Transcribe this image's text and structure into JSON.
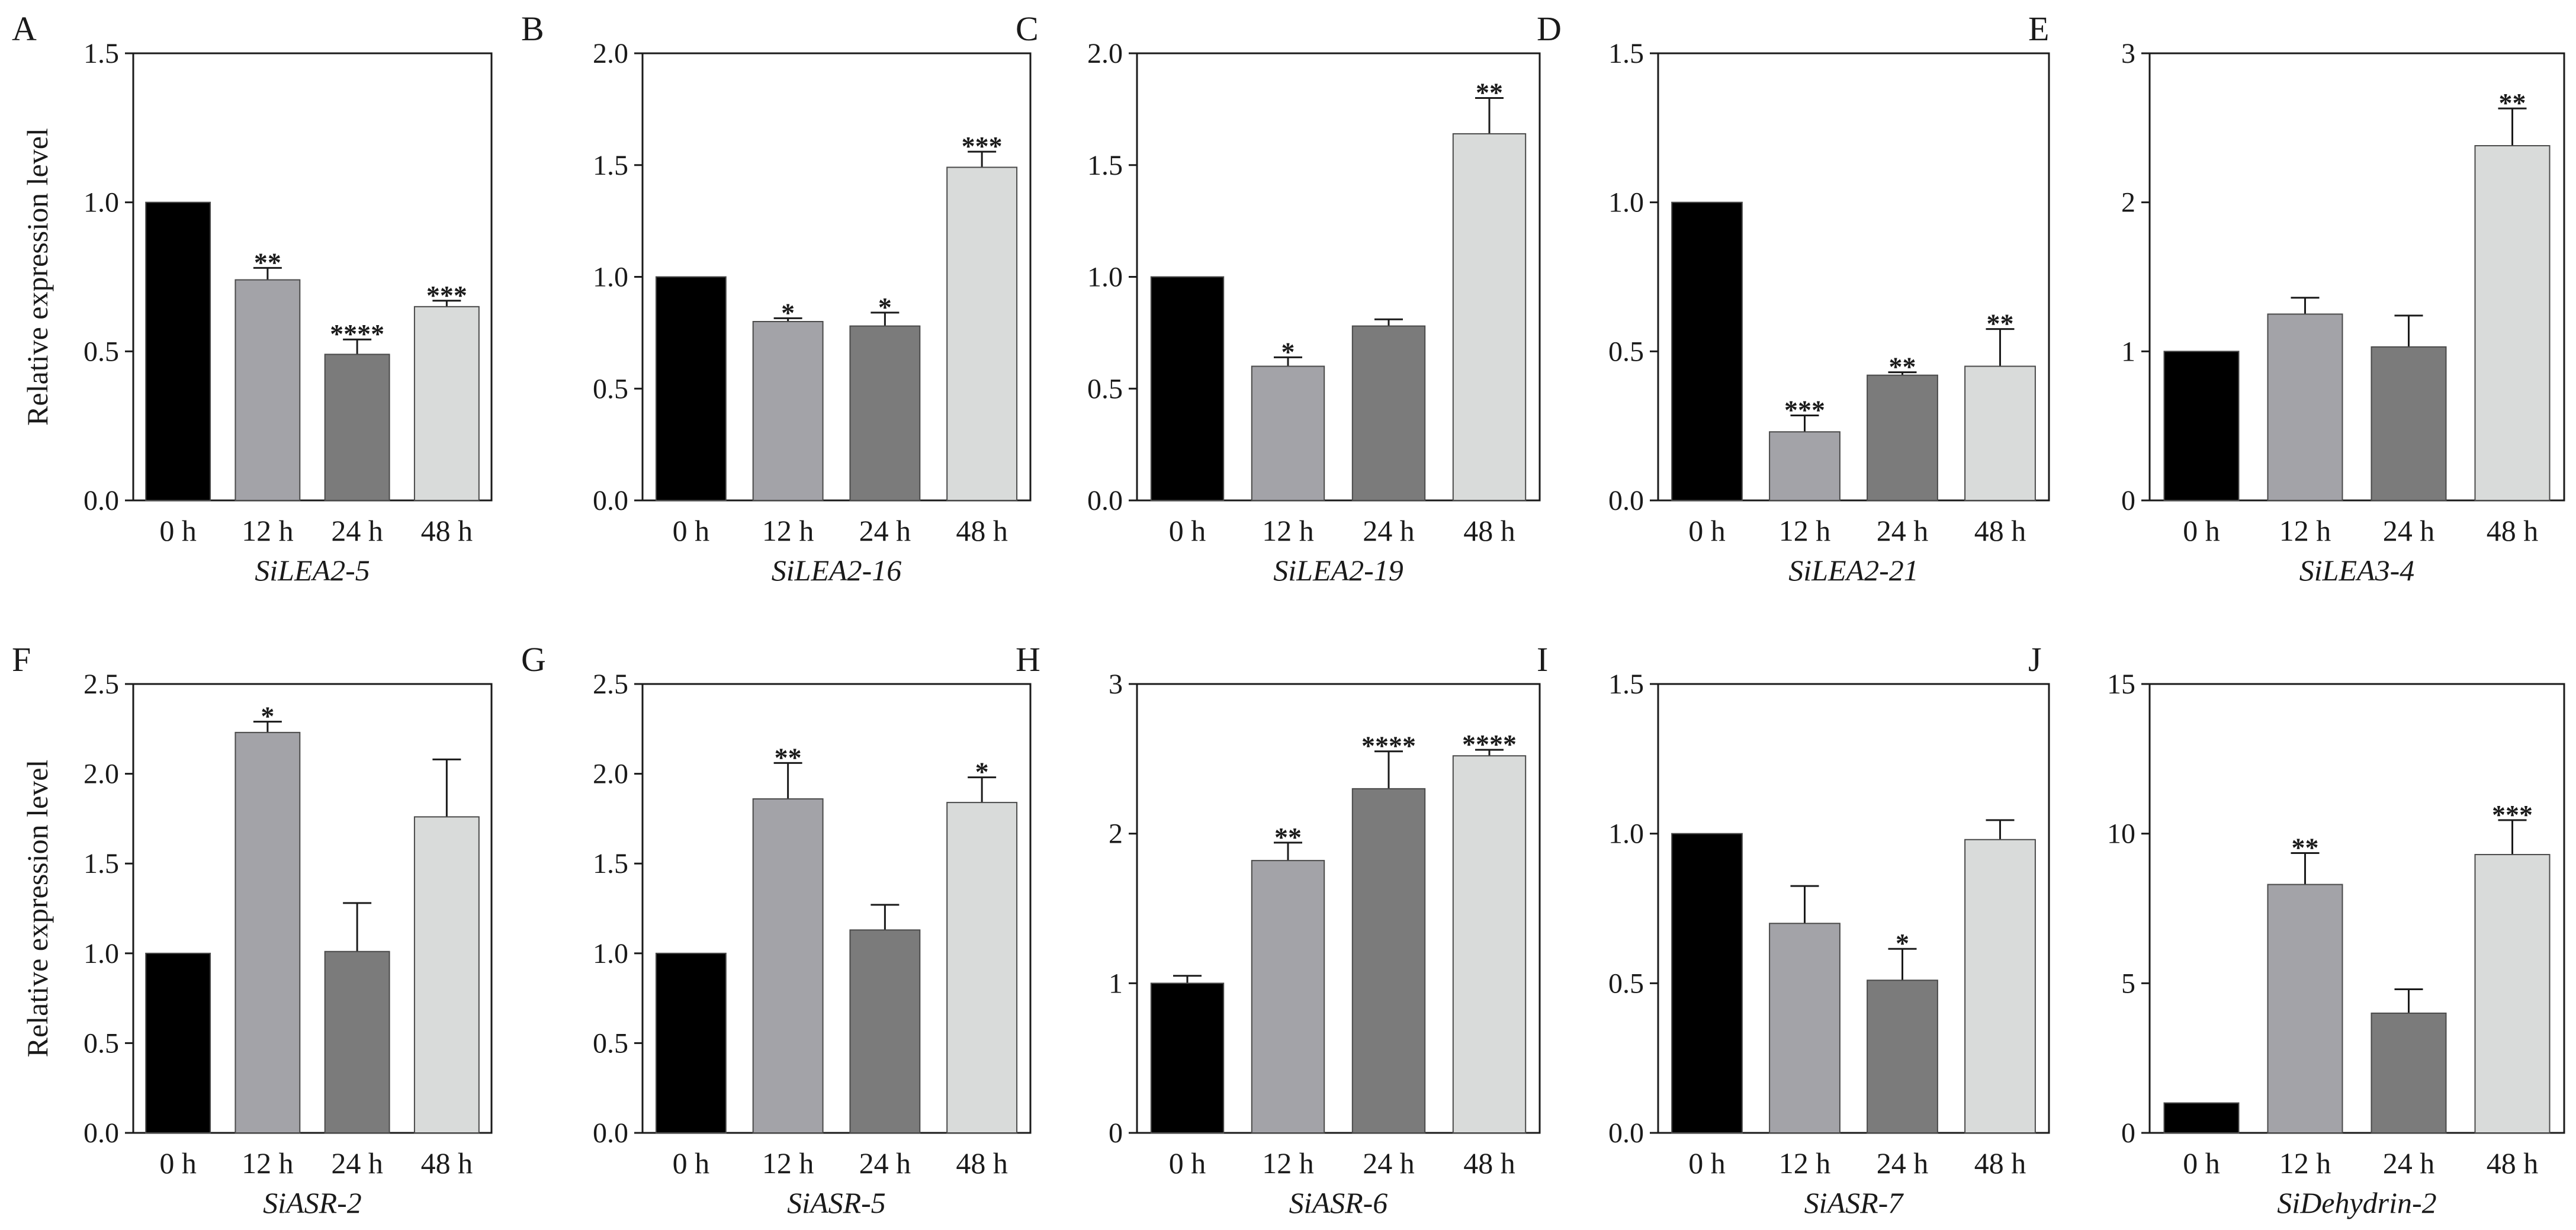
{
  "figure": {
    "ylabel": "Relative expression level",
    "colors": [
      "#000000",
      "#a3a3a8",
      "#7b7b7b",
      "#d9dbda"
    ]
  },
  "chart_data": [
    {
      "type": "bar",
      "panel": "A",
      "title": "SiLEA2-5",
      "ylabel": "Relative expression level",
      "categories": [
        "0 h",
        "12 h",
        "24 h",
        "48 h"
      ],
      "values": [
        1.0,
        0.74,
        0.49,
        0.65
      ],
      "errors": [
        0,
        0.04,
        0.05,
        0.02
      ],
      "significance": [
        "",
        "**",
        "****",
        "***"
      ],
      "ylim": [
        0,
        1.5
      ],
      "yticks": [
        0,
        0.5,
        1.0,
        1.5
      ],
      "yticklabels": [
        "0.0",
        "0.5",
        "1.0",
        "1.5"
      ]
    },
    {
      "type": "bar",
      "panel": "B",
      "title": "SiLEA2-16",
      "ylabel": "",
      "categories": [
        "0 h",
        "12 h",
        "24 h",
        "48 h"
      ],
      "values": [
        1.0,
        0.8,
        0.78,
        1.49
      ],
      "errors": [
        0,
        0.015,
        0.06,
        0.07
      ],
      "significance": [
        "",
        "*",
        "*",
        "***"
      ],
      "ylim": [
        0,
        2.0
      ],
      "yticks": [
        0,
        0.5,
        1.0,
        1.5,
        2.0
      ],
      "yticklabels": [
        "0.0",
        "0.5",
        "1.0",
        "1.5",
        "2.0"
      ]
    },
    {
      "type": "bar",
      "panel": "C",
      "title": "SiLEA2-19",
      "ylabel": "",
      "categories": [
        "0 h",
        "12 h",
        "24 h",
        "48 h"
      ],
      "values": [
        1.0,
        0.6,
        0.78,
        1.64
      ],
      "errors": [
        0,
        0.04,
        0.03,
        0.16
      ],
      "significance": [
        "",
        "*",
        "",
        "**"
      ],
      "ylim": [
        0,
        2.0
      ],
      "yticks": [
        0,
        0.5,
        1.0,
        1.5,
        2.0
      ],
      "yticklabels": [
        "0.0",
        "0.5",
        "1.0",
        "1.5",
        "2.0"
      ]
    },
    {
      "type": "bar",
      "panel": "D",
      "title": "SiLEA2-21",
      "ylabel": "",
      "categories": [
        "0 h",
        "12 h",
        "24 h",
        "48 h"
      ],
      "values": [
        1.0,
        0.23,
        0.42,
        0.45
      ],
      "errors": [
        0,
        0.055,
        0.01,
        0.125
      ],
      "significance": [
        "",
        "***",
        "**",
        "**"
      ],
      "ylim": [
        0,
        1.5
      ],
      "yticks": [
        0,
        0.5,
        1.0,
        1.5
      ],
      "yticklabels": [
        "0.0",
        "0.5",
        "1.0",
        "1.5"
      ]
    },
    {
      "type": "bar",
      "panel": "E",
      "title": "SiLEA3-4",
      "ylabel": "",
      "categories": [
        "0 h",
        "12 h",
        "24 h",
        "48 h"
      ],
      "values": [
        1.0,
        1.25,
        1.03,
        2.38
      ],
      "errors": [
        0,
        0.11,
        0.21,
        0.25
      ],
      "significance": [
        "",
        "",
        "",
        "**"
      ],
      "ylim": [
        0,
        3
      ],
      "yticks": [
        0,
        1,
        2,
        3
      ],
      "yticklabels": [
        "0",
        "1",
        "2",
        "3"
      ]
    },
    {
      "type": "bar",
      "panel": "F",
      "title": "SiASR-2",
      "ylabel": "Relative expression level",
      "categories": [
        "0 h",
        "12 h",
        "24 h",
        "48 h"
      ],
      "values": [
        1.0,
        2.23,
        1.01,
        1.76
      ],
      "errors": [
        0,
        0.06,
        0.27,
        0.32
      ],
      "significance": [
        "",
        "*",
        "",
        ""
      ],
      "ylim": [
        0,
        2.5
      ],
      "yticks": [
        0,
        0.5,
        1.0,
        1.5,
        2.0,
        2.5
      ],
      "yticklabels": [
        "0.0",
        "0.5",
        "1.0",
        "1.5",
        "2.0",
        "2.5"
      ]
    },
    {
      "type": "bar",
      "panel": "G",
      "title": "SiASR-5",
      "ylabel": "",
      "categories": [
        "0 h",
        "12 h",
        "24 h",
        "48 h"
      ],
      "values": [
        1.0,
        1.86,
        1.13,
        1.84
      ],
      "errors": [
        0,
        0.2,
        0.14,
        0.14
      ],
      "significance": [
        "",
        "**",
        "",
        "*"
      ],
      "ylim": [
        0,
        2.5
      ],
      "yticks": [
        0,
        0.5,
        1.0,
        1.5,
        2.0,
        2.5
      ],
      "yticklabels": [
        "0.0",
        "0.5",
        "1.0",
        "1.5",
        "2.0",
        "2.5"
      ]
    },
    {
      "type": "bar",
      "panel": "H",
      "title": "SiASR-6",
      "ylabel": "",
      "categories": [
        "0 h",
        "12 h",
        "24 h",
        "48 h"
      ],
      "values": [
        1.0,
        1.82,
        2.3,
        2.52
      ],
      "errors": [
        0.05,
        0.12,
        0.25,
        0.04
      ],
      "significance": [
        "",
        "**",
        "****",
        "****"
      ],
      "ylim": [
        0,
        3
      ],
      "yticks": [
        0,
        1,
        2,
        3
      ],
      "yticklabels": [
        "0",
        "1",
        "2",
        "3"
      ]
    },
    {
      "type": "bar",
      "panel": "I",
      "title": "SiASR-7",
      "ylabel": "",
      "categories": [
        "0 h",
        "12 h",
        "24 h",
        "48 h"
      ],
      "values": [
        1.0,
        0.7,
        0.51,
        0.98
      ],
      "errors": [
        0,
        0.125,
        0.105,
        0.065
      ],
      "significance": [
        "",
        "",
        "*",
        ""
      ],
      "ylim": [
        0,
        1.5
      ],
      "yticks": [
        0,
        0.5,
        1.0,
        1.5
      ],
      "yticklabels": [
        "0.0",
        "0.5",
        "1.0",
        "1.5"
      ]
    },
    {
      "type": "bar",
      "panel": "J",
      "title": "SiDehydrin-2",
      "ylabel": "",
      "categories": [
        "0 h",
        "12 h",
        "24 h",
        "48 h"
      ],
      "values": [
        1.0,
        8.3,
        4.0,
        9.3
      ],
      "errors": [
        0,
        1.05,
        0.8,
        1.15
      ],
      "significance": [
        "",
        "**",
        "",
        "***"
      ],
      "ylim": [
        0,
        15
      ],
      "yticks": [
        0,
        5,
        10,
        15
      ],
      "yticklabels": [
        "0",
        "5",
        "10",
        "15"
      ]
    }
  ]
}
